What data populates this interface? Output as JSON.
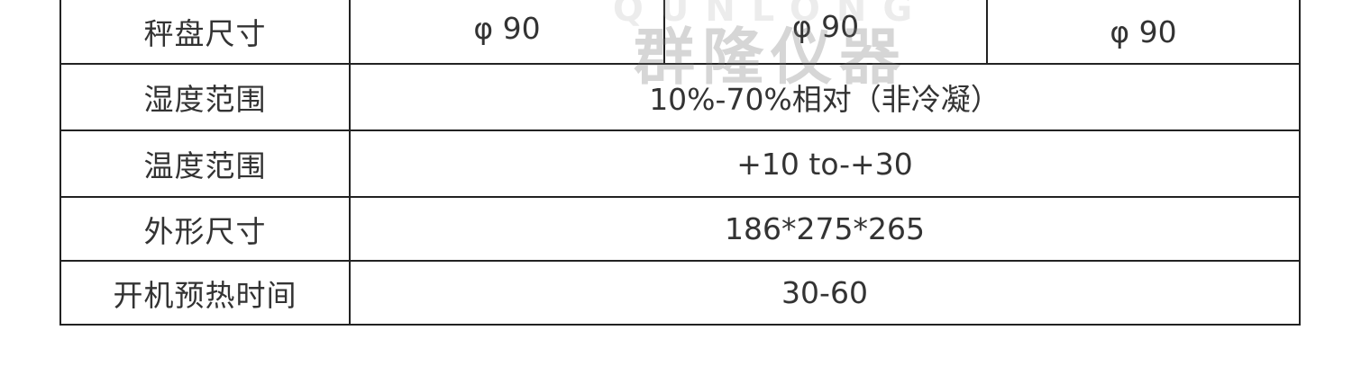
{
  "watermark": {
    "brand": "QUNLONG",
    "text": "群隆仪器"
  },
  "spec_table": {
    "rows": [
      {
        "label": "秤盘尺寸",
        "values": [
          "φ 90",
          "φ 90",
          "φ 90"
        ]
      },
      {
        "label": "湿度范围",
        "value": "10%-70%相对（非冷凝）"
      },
      {
        "label": "温度范围",
        "value": "+10 to-+30"
      },
      {
        "label": "外形尺寸",
        "value": "186*275*265"
      },
      {
        "label": "开机预热时间",
        "value": "30-60"
      }
    ]
  }
}
